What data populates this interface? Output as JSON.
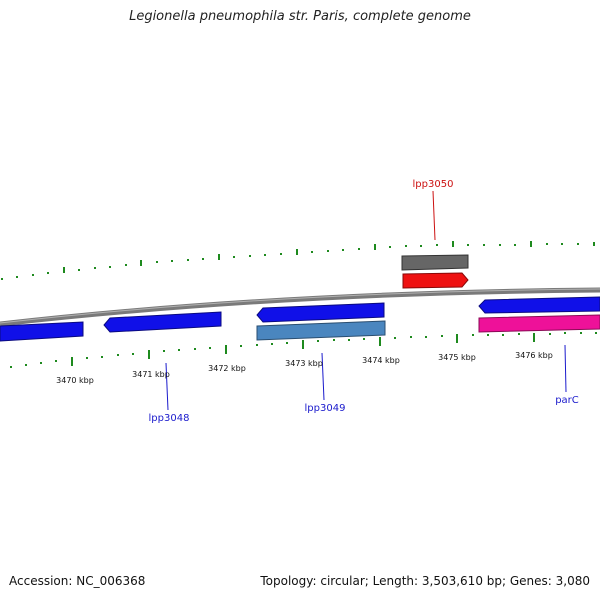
{
  "title": "Legionella pneumophila str. Paris, complete genome",
  "footer": {
    "accession": "Accession: NC_006368",
    "stats": "Topology: circular; Length: 3,503,610 bp; Genes: 3,080"
  },
  "colors": {
    "backbone": "#7a7a7a",
    "tick": "#1e8a1e",
    "gene_blue": "#1010e8",
    "gene_steel": "#4a86bf",
    "gene_gray": "#666666",
    "gene_red": "#ee1111",
    "gene_pink": "#ee1199",
    "label_blue": "#1a1acc",
    "label_red": "#cc1111"
  },
  "axis_labels": [
    "3470 kbp",
    "3471 kbp",
    "3472 kbp",
    "3473 kbp",
    "3474 kbp",
    "3475 kbp",
    "3476 kbp"
  ],
  "gene_labels": [
    "lpp3048",
    "lpp3049",
    "lpp3050",
    "parC"
  ]
}
